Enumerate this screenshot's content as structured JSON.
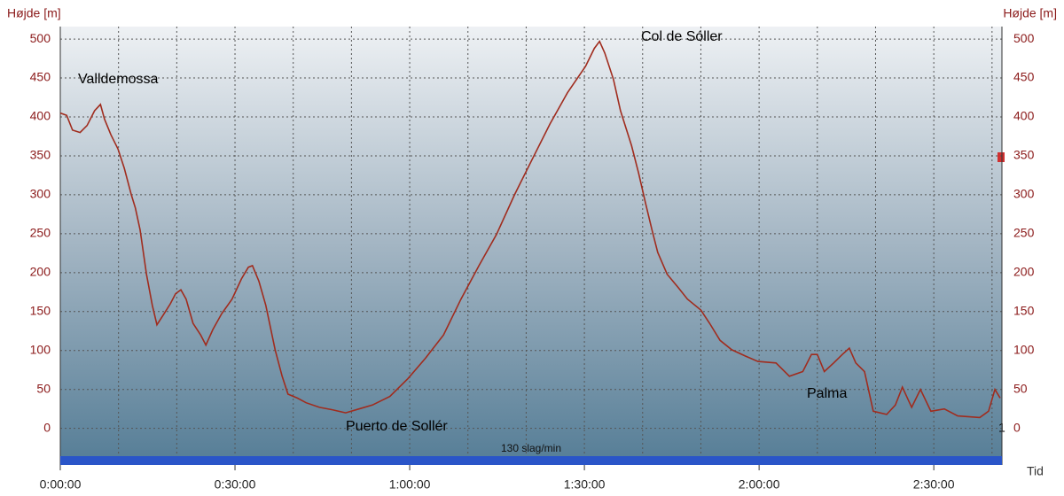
{
  "chart_data": {
    "type": "line",
    "ylabel": "Højde [m]",
    "xlabel": "Tid",
    "x": [
      0,
      1.1,
      2.1,
      3.4,
      4.6,
      5.9,
      6.9,
      7.6,
      8.7,
      9.9,
      11.0,
      12.2,
      12.9,
      13.7,
      14.8,
      15.8,
      16.6,
      17.8,
      18.9,
      19.8,
      20.7,
      21.6,
      22.8,
      24.1,
      25.0,
      26.2,
      27.7,
      29.5,
      31.1,
      32.3,
      33.0,
      34.1,
      35.3,
      36.9,
      38.1,
      39.1,
      40.7,
      42.2,
      44.5,
      46.7,
      49.0,
      51.3,
      53.6,
      56.6,
      59.7,
      62.7,
      65.8,
      68.8,
      71.9,
      74.9,
      78.0,
      81.0,
      84.1,
      87.1,
      90.2,
      91.7,
      92.6,
      93.5,
      95.0,
      96.2,
      98.1,
      99.3,
      100.5,
      101.6,
      102.6,
      104.2,
      106.1,
      107.7,
      110.0,
      111.5,
      113.3,
      115.3,
      117.6,
      119.8,
      122.9,
      125.2,
      127.5,
      129.0,
      130.0,
      131.2,
      132.8,
      134.3,
      135.5,
      136.6,
      138.1,
      139.6,
      141.9,
      143.4,
      144.6,
      146.2,
      147.7,
      149.5,
      151.8,
      154.1,
      157.9,
      159.4,
      160.5,
      161.4
    ],
    "series": [
      {
        "color": "#a02c1e",
        "values": [
          405,
          402,
          383,
          380,
          389,
          408,
          416,
          397,
          377,
          359,
          334,
          300,
          283,
          255,
          198,
          158,
          133,
          147,
          160,
          173,
          178,
          166,
          135,
          120,
          107,
          127,
          147,
          166,
          192,
          207,
          209,
          189,
          158,
          101,
          67,
          44,
          39,
          33,
          27,
          24,
          20,
          25,
          30,
          41,
          64,
          90,
          120,
          166,
          209,
          249,
          300,
          345,
          391,
          431,
          465,
          488,
          497,
          482,
          448,
          408,
          363,
          328,
          289,
          255,
          226,
          198,
          181,
          166,
          152,
          135,
          113,
          101,
          93,
          86,
          84,
          67,
          73,
          95,
          95,
          73,
          84,
          95,
          103,
          84,
          73,
          22,
          18,
          30,
          53,
          27,
          50,
          22,
          25,
          16,
          14,
          22,
          50,
          39
        ]
      }
    ],
    "xlim": [
      0,
      161.7
    ],
    "ylim": [
      -47,
      516
    ],
    "yticks": [
      0,
      50,
      100,
      150,
      200,
      250,
      300,
      350,
      400,
      450,
      500
    ],
    "xticks": [
      {
        "value": 0,
        "label": "0:00:00"
      },
      {
        "value": 30,
        "label": "0:30:00"
      },
      {
        "value": 60,
        "label": "1:00:00"
      },
      {
        "value": 90,
        "label": "1:30:00"
      },
      {
        "value": 120,
        "label": "2:00:00"
      },
      {
        "value": 150,
        "label": "2:30:00"
      }
    ],
    "minor_xticks": [
      10,
      20,
      40,
      50,
      70,
      80,
      100,
      110,
      130,
      140,
      160
    ],
    "grid": true,
    "annotations": [
      "Valldemossa",
      "Col de Sóller",
      "Puerto de Sollér",
      "Palma"
    ],
    "end_marker_label": "1",
    "hr_zone": {
      "label": "130 slag/min",
      "color": "#2a55c8"
    }
  }
}
